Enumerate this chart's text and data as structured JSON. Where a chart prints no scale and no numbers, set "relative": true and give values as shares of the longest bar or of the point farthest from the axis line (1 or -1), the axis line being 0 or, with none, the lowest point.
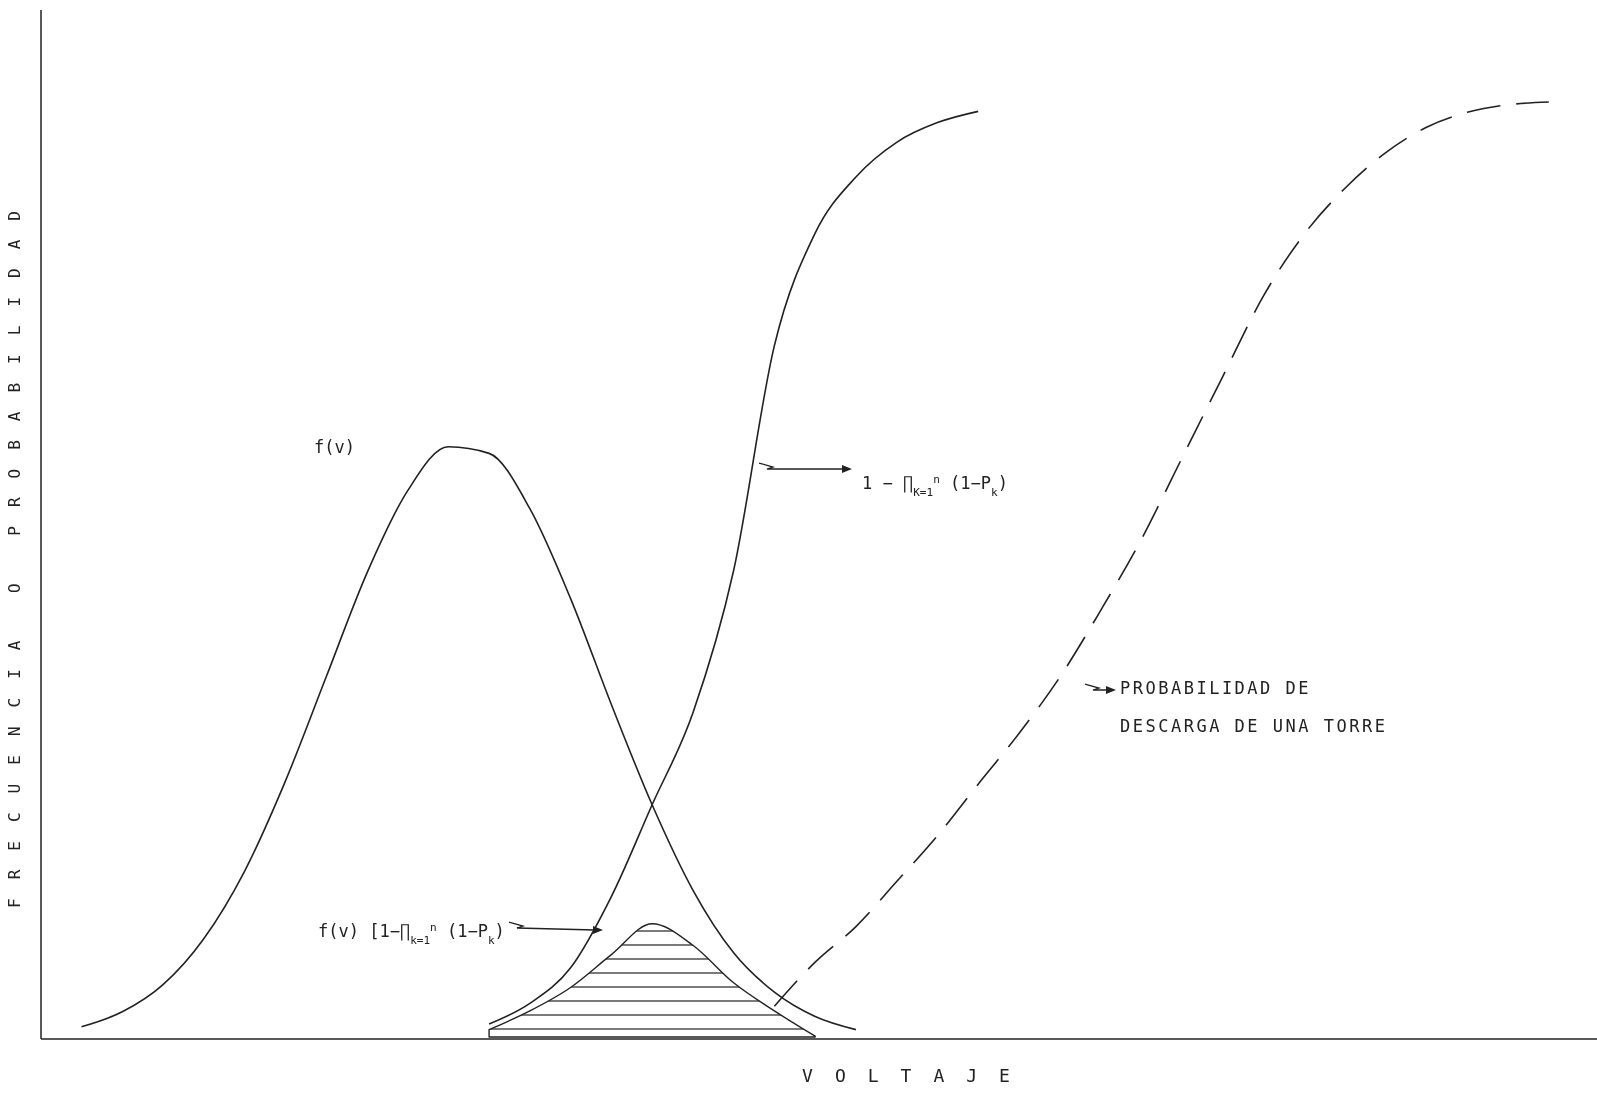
{
  "chart_data": {
    "type": "line",
    "relative": true,
    "xlabel": "VOLTAJE",
    "ylabel": "FRECUENCIA O PROBABILIDAD",
    "annotations": [
      "f(v)",
      "1 − ∏$_{K=1}$$^{n}$ (1−P$_{k}$)",
      "PROBABILIDAD DE DESCARGA DE UNA TORRE",
      "f(v) [1−∏$_{k=1}$$^{n}$ (1−P$_{k}$)"
    ],
    "categories": [
      null,
      null,
      null,
      null,
      null,
      null,
      null,
      null,
      null,
      null,
      null,
      null,
      null,
      null,
      null,
      null,
      null,
      null,
      null,
      null,
      null,
      null,
      null,
      null,
      null,
      null,
      null,
      null,
      null,
      null,
      null,
      null,
      null,
      null,
      null,
      null,
      null
    ],
    "series": [
      {
        "color": "#222222",
        "values": [
          0.013,
          0.029,
          0.058,
          0.107,
          0.179,
          0.275,
          0.386,
          0.497,
          0.585,
          0.632,
          0.625,
          0.566,
          0.47,
          0.357,
          0.25,
          0.159,
          0.092,
          0.05,
          0.024,
          0.01,
          null,
          null,
          null,
          null,
          null,
          null,
          null,
          null,
          null,
          null,
          null,
          null,
          null,
          null,
          null,
          null,
          null
        ]
      },
      {
        "color": "#222222",
        "values": [
          null,
          null,
          null,
          null,
          null,
          null,
          null,
          null,
          null,
          null,
          0.016,
          0.038,
          0.076,
          0.152,
          0.25,
          0.348,
          0.5,
          0.74,
          0.86,
          0.92,
          0.957,
          0.978,
          0.99,
          null,
          null,
          null,
          null,
          null,
          null,
          null,
          null,
          null,
          null,
          null,
          null,
          null,
          null
        ]
      },
      {
        "color": "#222222",
        "line_style": "dashed",
        "values": [
          null,
          null,
          null,
          null,
          null,
          null,
          null,
          null,
          null,
          null,
          null,
          null,
          null,
          null,
          null,
          null,
          null,
          0.035,
          0.082,
          0.12,
          0.168,
          0.217,
          0.272,
          0.326,
          0.386,
          0.457,
          0.533,
          0.62,
          0.707,
          0.793,
          0.859,
          0.908,
          0.946,
          0.973,
          0.989,
          0.997,
          1
        ]
      },
      {
        "type": "area",
        "color": "#222222",
        "values": [
          null,
          null,
          null,
          null,
          null,
          null,
          null,
          null,
          null,
          null,
          0.01,
          0.03,
          0.055,
          0.09,
          0.123,
          0.1,
          0.06,
          0.03,
          0.003,
          null,
          null,
          null,
          null,
          null,
          null,
          null,
          null,
          null,
          null,
          null,
          null,
          null,
          null,
          null,
          null,
          null,
          null
        ]
      }
    ]
  }
}
